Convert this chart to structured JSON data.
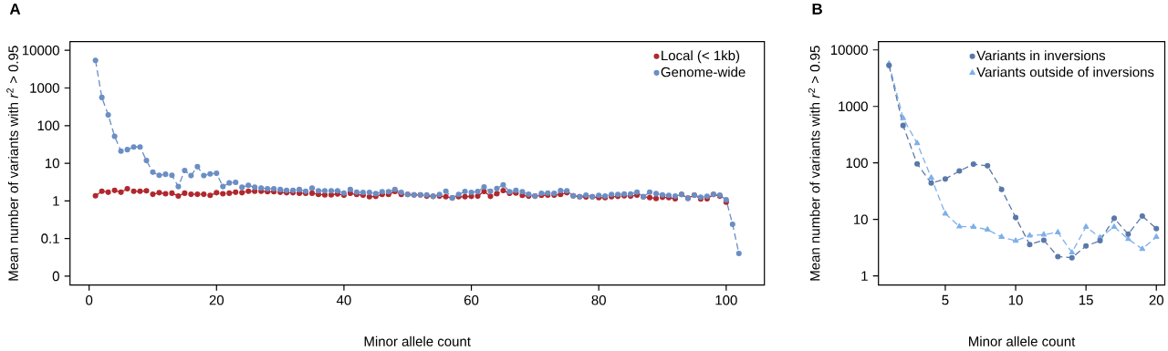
{
  "chart_data": [
    {
      "type": "line",
      "title": "A",
      "xlabel": "Minor allele count",
      "ylabel": "Mean number of variants with *r*$^{2}$ > 0.95",
      "x": [
        1,
        2,
        3,
        4,
        5,
        6,
        7,
        8,
        9,
        10,
        11,
        12,
        13,
        14,
        15,
        16,
        17,
        18,
        19,
        20,
        21,
        22,
        23,
        24,
        25,
        26,
        27,
        28,
        29,
        30,
        31,
        32,
        33,
        34,
        35,
        36,
        37,
        38,
        39,
        40,
        41,
        42,
        43,
        44,
        45,
        46,
        47,
        48,
        49,
        50,
        51,
        52,
        53,
        54,
        55,
        56,
        57,
        58,
        59,
        60,
        61,
        62,
        63,
        64,
        65,
        66,
        67,
        68,
        69,
        70,
        71,
        72,
        73,
        74,
        75,
        76,
        77,
        78,
        79,
        80,
        81,
        82,
        83,
        84,
        85,
        86,
        87,
        88,
        89,
        90,
        91,
        92,
        93,
        94,
        95,
        96,
        97,
        98,
        99,
        100,
        101,
        102
      ],
      "series": [
        {
          "name": "Local (< 1kb)",
          "color": "#b0282e",
          "marker": "circle",
          "line_style": "dashed",
          "values": [
            1.37,
            1.8,
            1.7,
            1.9,
            1.7,
            2.1,
            1.8,
            1.8,
            1.85,
            1.5,
            1.65,
            1.55,
            1.6,
            1.35,
            1.6,
            1.5,
            1.5,
            1.5,
            1.4,
            1.65,
            1.55,
            1.6,
            1.7,
            1.65,
            1.8,
            1.8,
            1.8,
            1.75,
            1.75,
            1.7,
            1.65,
            1.65,
            1.6,
            1.6,
            1.6,
            1.48,
            1.45,
            1.45,
            1.53,
            1.42,
            1.59,
            1.48,
            1.42,
            1.29,
            1.32,
            1.48,
            1.48,
            1.78,
            1.48,
            1.48,
            1.45,
            1.45,
            1.34,
            1.32,
            1.34,
            1.29,
            1.2,
            1.29,
            1.29,
            1.32,
            1.34,
            1.78,
            1.32,
            1.56,
            1.88,
            1.59,
            1.62,
            1.4,
            1.34,
            1.34,
            1.4,
            1.42,
            1.42,
            1.48,
            1.65,
            1.37,
            1.29,
            1.27,
            1.29,
            1.22,
            1.22,
            1.29,
            1.32,
            1.37,
            1.34,
            1.42,
            1.29,
            1.22,
            1.16,
            1.25,
            1.22,
            1.14,
            1.48,
            1.18,
            1.42,
            1.12,
            1.14,
            1.48,
            1.34,
            0.93,
            null,
            null
          ]
        },
        {
          "name": "Genome-wide",
          "color": "#6b8ec4",
          "marker": "circle",
          "line_style": "dashed",
          "values": [
            5400,
            560,
            192,
            52,
            21,
            23,
            27,
            27,
            11.8,
            5.8,
            4.8,
            5.1,
            4.8,
            2.4,
            6.4,
            4.7,
            8.1,
            4.7,
            5.2,
            5.4,
            2.4,
            3.0,
            3.1,
            2.3,
            2.6,
            2.3,
            2.2,
            2.1,
            2.1,
            2.0,
            1.9,
            1.9,
            2.0,
            1.8,
            2.2,
            1.85,
            1.85,
            1.85,
            1.85,
            1.62,
            2.02,
            1.71,
            1.68,
            1.68,
            1.56,
            1.75,
            1.75,
            2.02,
            1.68,
            1.48,
            1.45,
            1.45,
            1.45,
            1.32,
            1.48,
            1.81,
            1.2,
            1.48,
            1.78,
            1.68,
            1.78,
            2.35,
            1.81,
            2.14,
            2.67,
            1.75,
            1.9,
            1.75,
            1.5,
            1.34,
            1.59,
            1.62,
            1.59,
            1.88,
            1.85,
            1.37,
            1.29,
            1.42,
            1.29,
            1.4,
            1.34,
            1.48,
            1.48,
            1.53,
            1.53,
            1.71,
            1.29,
            1.71,
            1.56,
            1.45,
            1.4,
            1.34,
            1.48,
            1.18,
            1.42,
            1.25,
            1.32,
            1.48,
            1.42,
            1.07,
            0.24,
            0.04
          ]
        }
      ],
      "xlim": [
        -3,
        106
      ],
      "ylim": [
        0.0058,
        17000
      ],
      "xticks": [
        0,
        20,
        40,
        60,
        80,
        100
      ],
      "yticks": [
        {
          "value": 0.01,
          "label": "0"
        },
        0.1,
        1,
        10,
        100,
        1000,
        10000
      ],
      "log": "y",
      "legend": "top right"
    },
    {
      "type": "line",
      "title": "B",
      "xlabel": "Minor allele count",
      "ylabel": "Mean number of variants with *r*$^{2}$ > 0.95",
      "x": [
        1,
        2,
        3,
        4,
        5,
        6,
        7,
        8,
        9,
        10,
        11,
        12,
        13,
        14,
        15,
        16,
        17,
        18,
        19,
        20
      ],
      "series": [
        {
          "name": "Variants in inversions",
          "color": "#5a78a8",
          "marker": "circle",
          "line_style": "dashed",
          "values": [
            5300,
            460,
            96,
            44,
            52,
            72,
            95,
            89,
            34,
            10.8,
            3.6,
            4.3,
            2.2,
            2.1,
            3.4,
            4.2,
            10.5,
            5.5,
            11.5,
            6.9
          ]
        },
        {
          "name": "Variants outside of inversions",
          "color": "#7fb0ea",
          "marker": "triangle",
          "line_style": "dashed",
          "values": [
            5700,
            620,
            223,
            55,
            12.7,
            7.5,
            7.4,
            6.6,
            4.9,
            4.2,
            5.2,
            5.4,
            5.9,
            2.6,
            7.4,
            4.8,
            7.4,
            4.5,
            3.0,
            4.9
          ]
        }
      ],
      "xlim": [
        0.25,
        20.6
      ],
      "ylim": [
        0.69,
        14000
      ],
      "xticks": [
        5,
        10,
        15,
        20
      ],
      "yticks": [
        1,
        10,
        100,
        1000,
        10000
      ],
      "log": "y",
      "legend": "top right"
    }
  ]
}
